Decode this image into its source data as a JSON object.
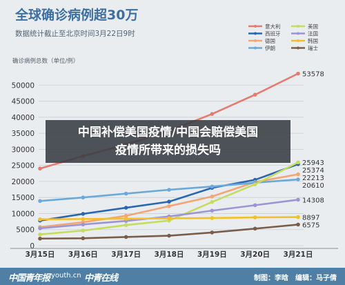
{
  "chart_data": {
    "type": "line",
    "title": "全球确诊病例超30万",
    "subtitle": "数据统计截止至北京时间3月22日9时",
    "ylabel": "确诊病例总数（单位/例）",
    "categories": [
      "3月15日",
      "3月16日",
      "3月17日",
      "3月18日",
      "3月19日",
      "3月20日",
      "3月21日"
    ],
    "ylim": [
      0,
      55000
    ],
    "yticks": [
      0,
      5000,
      10000,
      15000,
      20000,
      25000,
      30000,
      35000,
      40000,
      45000,
      50000
    ],
    "grid": true,
    "legend_position": "top-right",
    "series": [
      {
        "name": "意大利",
        "color": "#e77a6f",
        "values": [
          24000,
          27900,
          31500,
          35700,
          41000,
          47000,
          53578
        ]
      },
      {
        "name": "西班牙",
        "color": "#2a67b1",
        "values": [
          7800,
          9900,
          11800,
          13700,
          18000,
          20500,
          25374
        ]
      },
      {
        "name": "德国",
        "color": "#f4a574",
        "values": [
          5800,
          7300,
          9300,
          12300,
          15300,
          19800,
          22213
        ]
      },
      {
        "name": "伊朗",
        "color": "#6aa9d8",
        "values": [
          13900,
          15000,
          16200,
          17400,
          18400,
          19600,
          20610
        ]
      },
      {
        "name": "美国",
        "color": "#c5dc5e",
        "values": [
          3500,
          4700,
          6400,
          7800,
          13600,
          19100,
          25943
        ]
      },
      {
        "name": "法国",
        "color": "#9c95d4",
        "values": [
          5400,
          6600,
          7700,
          9100,
          10900,
          12600,
          14308
        ]
      },
      {
        "name": "韩国",
        "color": "#f3bf2a",
        "values": [
          8200,
          8300,
          8400,
          8500,
          8600,
          8800,
          8897
        ]
      },
      {
        "name": "瑞士",
        "color": "#7a5c4a",
        "values": [
          2200,
          2300,
          2700,
          3100,
          4100,
          5300,
          6575
        ]
      }
    ],
    "end_labels": [
      "53578",
      "25943",
      "25374",
      "22213",
      "20610",
      "14308",
      "8897",
      "6575"
    ]
  },
  "overlay": {
    "line1": "中国补偿美国疫情/中国会赔偿美国",
    "line2": "疫情所带来的损失吗"
  },
  "footer": {
    "logo1": "中国青年报",
    "site": "youth.cn",
    "logo2": "中青在线",
    "credits": "制图：李晗　编辑：马子倩"
  }
}
